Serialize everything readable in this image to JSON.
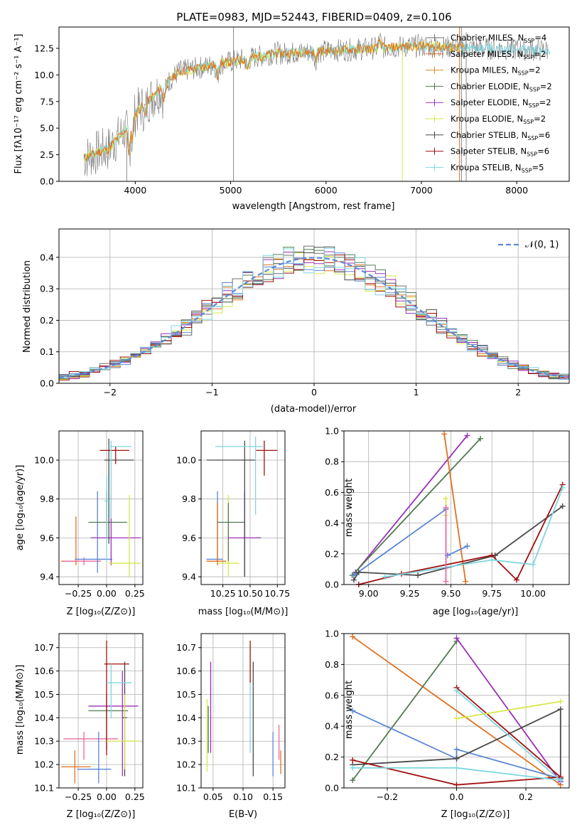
{
  "title": "PLATE=0983, MJD=52443, FIBERID=0409, z=0.106",
  "colors": {
    "chabrier_miles": "#6f6f6f",
    "salpeter_miles": "#e1701f",
    "kroupa_miles": "#d98b2f",
    "chabrier_elodie": "#527a52",
    "salpeter_elodie": "#9b30b8",
    "kroupa_elodie": "#d7e84a",
    "chabrier_stelib": "#4a4a4a",
    "salpeter_stelib": "#a01010",
    "kroupa_stelib": "#7fd6e0",
    "normal": "#5b8bd6",
    "blue": "#5b85d6",
    "pink": "#e96aa0"
  },
  "spectrum": {
    "xlabel": "wavelength [Angstrom, rest frame]",
    "ylabel": "Flux [fλ10⁻¹⁷ erg cm⁻² s⁻¹ A⁻¹]",
    "xlim": [
      3200,
      8550
    ],
    "ylim": [
      0,
      14.5
    ],
    "xticks": [
      "4000",
      "5000",
      "6000",
      "7000",
      "8000"
    ],
    "yticks": [
      "0.0",
      "2.5",
      "5.0",
      "7.5",
      "10.0",
      "12.5"
    ],
    "legend": [
      "Chabrier MILES, N_SSP=4",
      "Salpeter MILES, N_SSP=2",
      "Kroupa MILES, N_SSP=2",
      "Chabrier ELODIE, N_SSP=2",
      "Salpeter ELODIE, N_SSP=2",
      "Kroupa ELODIE, N_SSP=2",
      "Chabrier STELIB, N_SSP=6",
      "Salpeter STELIB, N_SSP=6",
      "Kroupa STELIB, N_SSP=5"
    ]
  },
  "residuals": {
    "xlabel": "(data-model)/error",
    "ylabel": "Normed distribution",
    "xlim": [
      -2.5,
      2.5
    ],
    "ylim": [
      0,
      0.49
    ],
    "xticks": [
      "−2",
      "−1",
      "0",
      "1",
      "2"
    ],
    "yticks": [
      "0.0",
      "0.1",
      "0.2",
      "0.3",
      "0.4"
    ],
    "legend": "𝒩(0, 1)"
  },
  "panels": {
    "age_vs_Z": {
      "xlabel": "Z [log₁₀(Z/Z⊙)]",
      "ylabel": "age  [log₁₀(age/yr)]",
      "xticks": [
        "−0.25",
        "0.00",
        "0.25"
      ],
      "yticks": [
        "9.4",
        "9.6",
        "9.8",
        "10.0"
      ]
    },
    "age_vs_mass": {
      "xlabel": "mass [log₁₀(M/M⊙)]",
      "xticks": [
        "10.25",
        "10.50",
        "10.75"
      ],
      "yticks": [
        "9.4",
        "9.6",
        "9.8",
        "10.0"
      ]
    },
    "weight_vs_age": {
      "xlabel": "age  [log₁₀(age/yr)]",
      "ylabel": "mass weight",
      "xticks": [
        "9.00",
        "9.25",
        "9.50",
        "9.75",
        "10.00"
      ],
      "yticks": [
        "0.0",
        "0.2",
        "0.4",
        "0.6",
        "0.8",
        "1.0"
      ]
    },
    "mass_vs_Z": {
      "xlabel": "Z [log₁₀(Z/Z⊙)]",
      "ylabel": "mass [log₁₀(M/M⊙)]",
      "xticks": [
        "−0.25",
        "0.00",
        "0.25"
      ],
      "yticks": [
        "10.1",
        "10.2",
        "10.3",
        "10.4",
        "10.5",
        "10.6",
        "10.7"
      ]
    },
    "mass_vs_EBV": {
      "xlabel": "E(B-V)",
      "xticks": [
        "0.05",
        "0.10",
        "0.15"
      ],
      "yticks": [
        "10.1",
        "10.2",
        "10.3",
        "10.4",
        "10.5",
        "10.6",
        "10.7"
      ]
    },
    "weight_vs_Z": {
      "xlabel": "Z [log₁₀(Z/Z⊙)]",
      "ylabel": "mass weight",
      "xticks": [
        "−0.2",
        "0.0",
        "0.2"
      ],
      "yticks": [
        "0.0",
        "0.2",
        "0.4",
        "0.6",
        "0.8",
        "1.0"
      ]
    }
  },
  "chart_data": {
    "type": "line",
    "title": "PLATE=0983, MJD=52443, FIBERID=0409, z=0.106",
    "normal_curve": {
      "name": "𝒩(0, 1)",
      "mean": 0,
      "sigma": 1
    },
    "weight_vs_age": [
      {
        "color": "#9b30b8",
        "points": [
          [
            8.92,
            0.08
          ],
          [
            9.6,
            0.97
          ]
        ]
      },
      {
        "color": "#527a52",
        "points": [
          [
            8.9,
            0.06
          ],
          [
            9.68,
            0.95
          ]
        ]
      },
      {
        "color": "#e1701f",
        "points": [
          [
            9.46,
            0.98
          ],
          [
            9.59,
            0.02
          ]
        ]
      },
      {
        "color": "#5b85d6",
        "points": [
          [
            8.91,
            0.06
          ],
          [
            9.47,
            0.49
          ]
        ]
      },
      {
        "color": "#5b85d6",
        "points": [
          [
            9.48,
            0.19
          ],
          [
            9.6,
            0.25
          ]
        ]
      },
      {
        "color": "#4a4a4a",
        "points": [
          [
            8.91,
            0.03
          ],
          [
            8.94,
            0.08
          ],
          [
            9.3,
            0.06
          ],
          [
            9.77,
            0.19
          ],
          [
            10.18,
            0.51
          ]
        ]
      },
      {
        "color": "#a01010",
        "points": [
          [
            8.94,
            0.0
          ],
          [
            9.2,
            0.07
          ],
          [
            9.75,
            0.19
          ],
          [
            9.9,
            0.03
          ],
          [
            10.18,
            0.65
          ]
        ]
      },
      {
        "color": "#7fd6e0",
        "points": [
          [
            9.1,
            0.05
          ],
          [
            9.75,
            0.16
          ],
          [
            10.0,
            0.13
          ],
          [
            10.18,
            0.63
          ]
        ]
      },
      {
        "color": "#d7e84a",
        "points": [
          [
            9.47,
            0.56
          ],
          [
            9.47,
            0.45
          ]
        ]
      },
      {
        "color": "#e96aa0",
        "points": [
          [
            9.47,
            0.02
          ],
          [
            9.47,
            0.5
          ]
        ]
      }
    ],
    "weight_vs_Z": [
      {
        "color": "#e1701f",
        "points": [
          [
            -0.3,
            0.98
          ],
          [
            0.3,
            0.02
          ]
        ]
      },
      {
        "color": "#527a52",
        "points": [
          [
            -0.3,
            0.05
          ],
          [
            0.0,
            0.95
          ]
        ]
      },
      {
        "color": "#9b30b8",
        "points": [
          [
            0.0,
            0.97
          ],
          [
            0.3,
            0.04
          ]
        ]
      },
      {
        "color": "#5b85d6",
        "points": [
          [
            -0.3,
            0.5
          ],
          [
            0.0,
            0.19
          ],
          [
            0.0,
            0.25
          ],
          [
            0.3,
            0.06
          ]
        ]
      },
      {
        "color": "#4a4a4a",
        "points": [
          [
            -0.3,
            0.15
          ],
          [
            0.0,
            0.19
          ],
          [
            0.3,
            0.51
          ],
          [
            0.3,
            0.06
          ]
        ]
      },
      {
        "color": "#a01010",
        "points": [
          [
            -0.3,
            0.18
          ],
          [
            0.0,
            0.02
          ],
          [
            0.3,
            0.07
          ],
          [
            0.0,
            0.65
          ]
        ]
      },
      {
        "color": "#7fd6e0",
        "points": [
          [
            -0.3,
            0.13
          ],
          [
            0.0,
            0.13
          ],
          [
            0.3,
            0.05
          ],
          [
            0.0,
            0.63
          ]
        ]
      },
      {
        "color": "#d7e84a",
        "points": [
          [
            0.0,
            0.45
          ],
          [
            0.3,
            0.56
          ]
        ]
      }
    ]
  }
}
